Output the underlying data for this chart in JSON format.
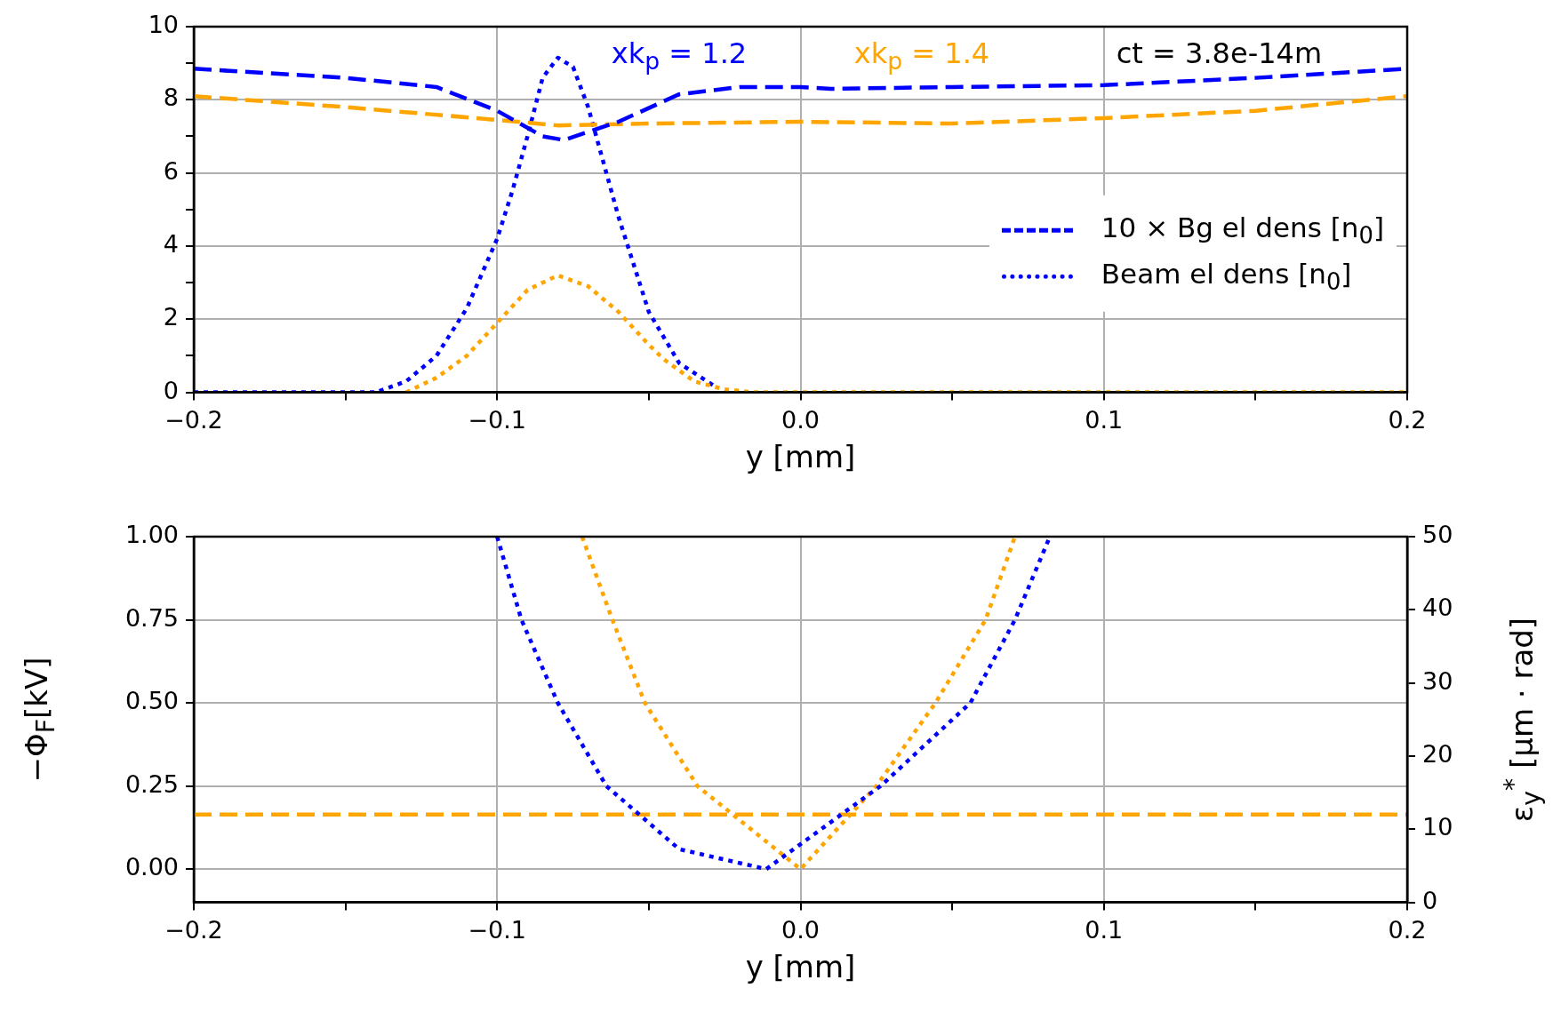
{
  "chart_data": [
    {
      "type": "line",
      "xlabel": "y [mm]",
      "xlim": [
        -0.2,
        0.2
      ],
      "ylim": [
        0,
        10
      ],
      "xticks": [
        {
          "value": -0.2,
          "label": "−0.2"
        },
        {
          "value": -0.15,
          "label": null
        },
        {
          "value": -0.1,
          "label": "−0.1"
        },
        {
          "value": -0.05,
          "label": null
        },
        {
          "value": 0,
          "label": "0.0"
        },
        {
          "value": 0.05,
          "label": null
        },
        {
          "value": 0.1,
          "label": "0.1"
        },
        {
          "value": 0.15,
          "label": null
        },
        {
          "value": 0.2,
          "label": "0.2"
        }
      ],
      "yticks": [
        0,
        {
          "value": 1,
          "label": null
        },
        2,
        {
          "value": 3,
          "label": null
        },
        4,
        {
          "value": 5,
          "label": null
        },
        6,
        {
          "value": 7,
          "label": null
        },
        8,
        {
          "value": 9,
          "label": null
        },
        10
      ],
      "grid": true,
      "legend": "right",
      "annotations": [
        "xk$_{p}$ = 1.2",
        "xk$_{p}$ = 1.4",
        "ct = 3.8e-14m"
      ],
      "series": [
        {
          "name": "10 × Bg el dens [n$_{0}$]",
          "color": "#0000ff",
          "line_style": "dashed",
          "x": [
            -0.2,
            -0.15,
            -0.12,
            -0.1,
            -0.085,
            -0.078,
            -0.06,
            -0.04,
            -0.02,
            0,
            0.01,
            0.05,
            0.1,
            0.15,
            0.2
          ],
          "values": [
            8.85,
            8.6,
            8.35,
            7.7,
            7.0,
            6.9,
            7.4,
            8.15,
            8.35,
            8.35,
            8.3,
            8.35,
            8.4,
            8.6,
            8.85
          ]
        },
        {
          "color": "#ffa500",
          "line_style": "dashed",
          "x": [
            -0.2,
            -0.15,
            -0.1,
            -0.08,
            -0.05,
            0,
            0.05,
            0.1,
            0.15,
            0.2
          ],
          "values": [
            8.1,
            7.8,
            7.45,
            7.3,
            7.35,
            7.4,
            7.35,
            7.5,
            7.7,
            8.1
          ]
        },
        {
          "color": "#ffa500",
          "line_style": "dotted",
          "x": [
            -0.13,
            -0.12,
            -0.11,
            -0.1,
            -0.09,
            -0.08,
            -0.07,
            -0.06,
            -0.05,
            -0.045,
            -0.035,
            -0.025,
            -0.015,
            0.2
          ],
          "values": [
            0,
            0.4,
            1.0,
            1.9,
            2.8,
            3.2,
            2.9,
            2.2,
            1.3,
            0.9,
            0.3,
            0.08,
            0,
            0
          ]
        },
        {
          "name": "Beam el dens [n$_{0}$]",
          "color": "#0000ff",
          "line_style": "dotted",
          "x": [
            -0.2,
            -0.14,
            -0.13,
            -0.12,
            -0.11,
            -0.1,
            -0.095,
            -0.09,
            -0.085,
            -0.08,
            -0.075,
            -0.07,
            -0.065,
            -0.06,
            -0.05,
            -0.04,
            -0.028
          ],
          "values": [
            0,
            0,
            0.3,
            1.0,
            2.3,
            4.2,
            5.5,
            7.0,
            8.6,
            9.15,
            8.9,
            7.8,
            6.3,
            4.8,
            2.2,
            0.8,
            0.15
          ]
        }
      ]
    },
    {
      "type": "line",
      "xlabel": "y [mm]",
      "ylabel": "−Φ$_{F}$[kV]",
      "y2label": "ε$_{y}$$^{*}$ [µm · rad]",
      "xlim": [
        -0.2,
        0.2
      ],
      "ylim": [
        -0.1,
        1.0
      ],
      "y2lim": [
        0,
        50
      ],
      "xticks": [
        {
          "value": -0.2,
          "label": "−0.2"
        },
        {
          "value": -0.15,
          "label": null
        },
        {
          "value": -0.1,
          "label": "−0.1"
        },
        {
          "value": -0.05,
          "label": null
        },
        {
          "value": 0,
          "label": "0.0"
        },
        {
          "value": 0.05,
          "label": null
        },
        {
          "value": 0.1,
          "label": "0.1"
        },
        {
          "value": 0.15,
          "label": null
        },
        {
          "value": 0.2,
          "label": "0.2"
        }
      ],
      "yticks": [
        {
          "value": 0,
          "label": "0.00"
        },
        {
          "value": 0.25,
          "label": "0.25"
        },
        {
          "value": 0.5,
          "label": "0.50"
        },
        {
          "value": 0.75,
          "label": "0.75"
        },
        {
          "value": 1,
          "label": "1.00"
        }
      ],
      "y2ticks": [
        0,
        10,
        20,
        30,
        40,
        50
      ],
      "grid": true,
      "series": [
        {
          "color": "#0000ff",
          "line_style": "dotted",
          "x": [
            -0.1,
            -0.092,
            -0.08,
            -0.064,
            -0.04,
            -0.0113,
            0.0264,
            0.056,
            0.0707,
            0.0822
          ],
          "values": [
            1.0,
            0.75,
            0.5,
            0.25,
            0.06,
            0,
            0.25,
            0.5,
            0.75,
            1.0
          ]
        },
        {
          "color": "#ffa500",
          "line_style": "dotted",
          "x": [
            -0.072,
            -0.062,
            -0.0513,
            -0.034,
            0,
            0.025,
            0.0445,
            0.061,
            0.0707
          ],
          "values": [
            1.0,
            0.75,
            0.5,
            0.25,
            0,
            0.25,
            0.5,
            0.75,
            1.0
          ]
        },
        {
          "color": "#ffa500",
          "line_style": "dashed",
          "axis": "y2",
          "x": [
            -0.2,
            0.2
          ],
          "values": [
            12,
            12
          ]
        }
      ]
    }
  ]
}
